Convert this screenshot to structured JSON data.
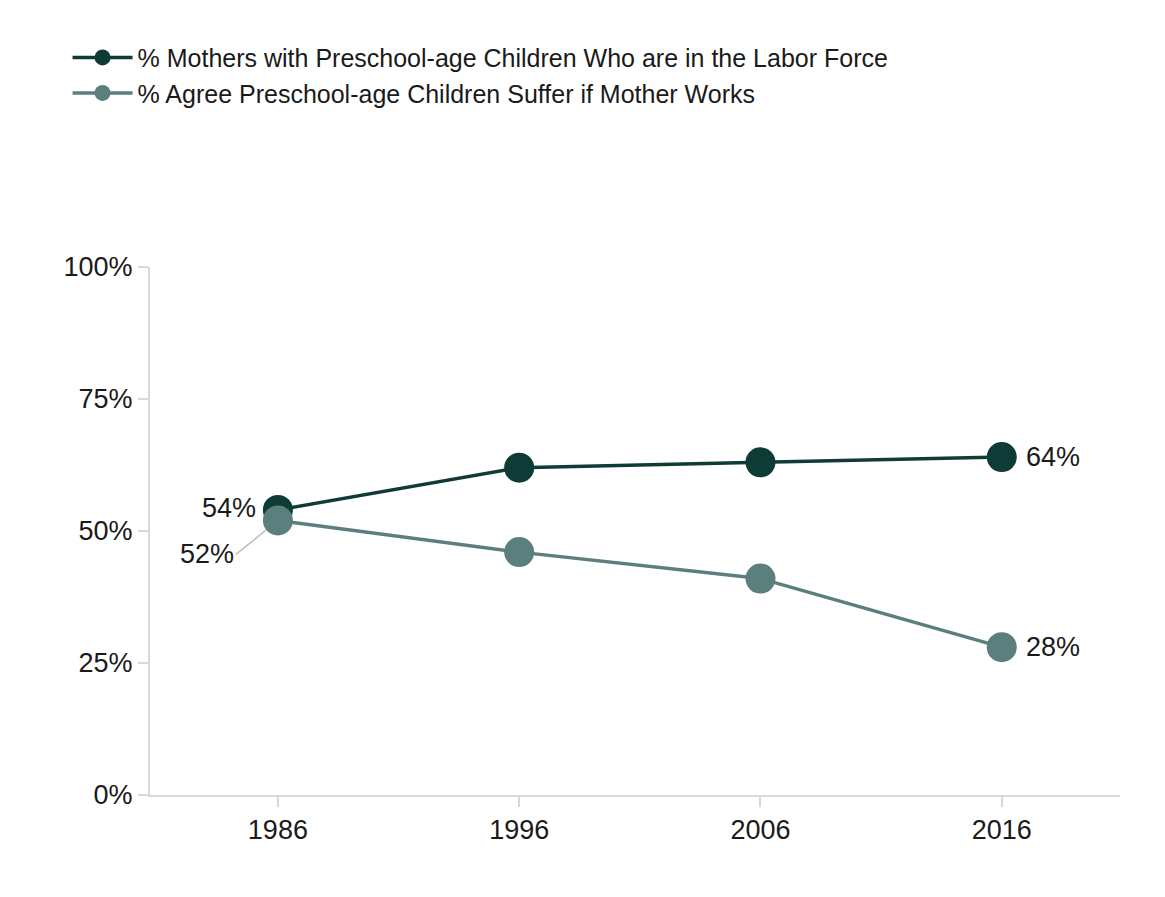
{
  "chart_data": {
    "type": "line",
    "categories": [
      "1986",
      "1996",
      "2006",
      "2016"
    ],
    "series": [
      {
        "name": "% Mothers with Preschool-age Children Who are in the Labor Force",
        "color": "#0f3b36",
        "marker": "circle",
        "values": [
          54,
          62,
          63,
          64
        ],
        "value_labels": [
          "54%",
          null,
          null,
          "64%"
        ]
      },
      {
        "name": "% Agree Preschool-age Children Suffer if Mother Works",
        "color": "#5b7f7c",
        "marker": "circle",
        "values": [
          52,
          46,
          41,
          28
        ],
        "value_labels": [
          "52%",
          null,
          null,
          "28%"
        ]
      }
    ],
    "ylim": [
      0,
      100
    ],
    "yticks": [
      {
        "value": 0,
        "label": "0%"
      },
      {
        "value": 25,
        "label": "25%"
      },
      {
        "value": 50,
        "label": "50%"
      },
      {
        "value": 75,
        "label": "75%"
      },
      {
        "value": 100,
        "label": "100%"
      }
    ],
    "grid": false,
    "legend": "top left",
    "data_labels": true
  }
}
